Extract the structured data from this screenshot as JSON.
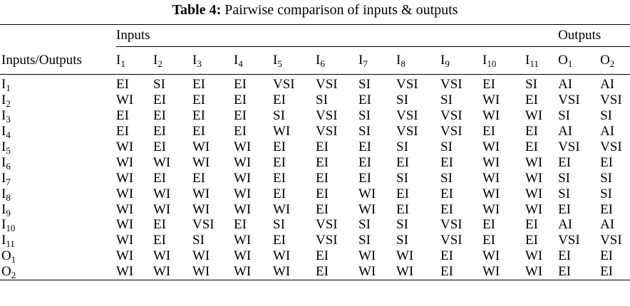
{
  "caption": {
    "label": "Table 4:",
    "text": "Pairwise comparison of inputs & outputs"
  },
  "table": {
    "corner_label": "Inputs/Outputs",
    "group_inputs": "Inputs",
    "group_outputs": "Outputs",
    "columns": [
      {
        "base": "I",
        "sub": "1"
      },
      {
        "base": "I",
        "sub": "2"
      },
      {
        "base": "I",
        "sub": "3"
      },
      {
        "base": "I",
        "sub": "4"
      },
      {
        "base": "I",
        "sub": "5"
      },
      {
        "base": "I",
        "sub": "6"
      },
      {
        "base": "I",
        "sub": "7"
      },
      {
        "base": "I",
        "sub": "8"
      },
      {
        "base": "I",
        "sub": "9"
      },
      {
        "base": "I",
        "sub": "10"
      },
      {
        "base": "I",
        "sub": "11"
      },
      {
        "base": "O",
        "sub": "1"
      },
      {
        "base": "O",
        "sub": "2"
      }
    ],
    "rows": [
      {
        "label": {
          "base": "I",
          "sub": "1"
        },
        "cells": [
          "EI",
          "SI",
          "EI",
          "EI",
          "VSI",
          "VSI",
          "SI",
          "VSI",
          "VSI",
          "EI",
          "SI",
          "AI",
          "AI"
        ]
      },
      {
        "label": {
          "base": "I",
          "sub": "2"
        },
        "cells": [
          "WI",
          "EI",
          "EI",
          "EI",
          "EI",
          "SI",
          "EI",
          "SI",
          "SI",
          "WI",
          "EI",
          "VSI",
          "VSI"
        ]
      },
      {
        "label": {
          "base": "I",
          "sub": "3"
        },
        "cells": [
          "EI",
          "EI",
          "EI",
          "EI",
          "SI",
          "VSI",
          "SI",
          "VSI",
          "VSI",
          "WI",
          "WI",
          "SI",
          "SI"
        ]
      },
      {
        "label": {
          "base": "I",
          "sub": "4"
        },
        "cells": [
          "EI",
          "EI",
          "EI",
          "EI",
          "WI",
          "VSI",
          "SI",
          "VSI",
          "VSI",
          "EI",
          "EI",
          "AI",
          "AI"
        ]
      },
      {
        "label": {
          "base": "I",
          "sub": "5"
        },
        "cells": [
          "WI",
          "EI",
          "WI",
          "WI",
          "EI",
          "EI",
          "EI",
          "SI",
          "SI",
          "WI",
          "EI",
          "VSI",
          "VSI"
        ]
      },
      {
        "label": {
          "base": "I",
          "sub": "6"
        },
        "cells": [
          "WI",
          "WI",
          "WI",
          "WI",
          "EI",
          "EI",
          "EI",
          "EI",
          "EI",
          "WI",
          "WI",
          "EI",
          "EI"
        ]
      },
      {
        "label": {
          "base": "I",
          "sub": "7"
        },
        "cells": [
          "WI",
          "EI",
          "EI",
          "WI",
          "EI",
          "EI",
          "EI",
          "SI",
          "SI",
          "WI",
          "WI",
          "SI",
          "SI"
        ]
      },
      {
        "label": {
          "base": "I",
          "sub": "8"
        },
        "cells": [
          "WI",
          "WI",
          "WI",
          "WI",
          "EI",
          "EI",
          "WI",
          "EI",
          "EI",
          "WI",
          "WI",
          "SI",
          "SI"
        ]
      },
      {
        "label": {
          "base": "I",
          "sub": "9"
        },
        "cells": [
          "WI",
          "WI",
          "WI",
          "WI",
          "WI",
          "EI",
          "WI",
          "EI",
          "EI",
          "WI",
          "WI",
          "EI",
          "EI"
        ]
      },
      {
        "label": {
          "base": "I",
          "sub": "10"
        },
        "cells": [
          "WI",
          "EI",
          "VSI",
          "EI",
          "SI",
          "VSI",
          "SI",
          "SI",
          "VSI",
          "EI",
          "EI",
          "AI",
          "AI"
        ]
      },
      {
        "label": {
          "base": "I",
          "sub": "11"
        },
        "cells": [
          "WI",
          "EI",
          "SI",
          "WI",
          "EI",
          "VSI",
          "SI",
          "SI",
          "VSI",
          "EI",
          "EI",
          "VSI",
          "VSI"
        ]
      },
      {
        "label": {
          "base": "O",
          "sub": "1"
        },
        "cells": [
          "WI",
          "WI",
          "WI",
          "WI",
          "WI",
          "EI",
          "WI",
          "WI",
          "EI",
          "WI",
          "WI",
          "EI",
          "EI"
        ]
      },
      {
        "label": {
          "base": "O",
          "sub": "2"
        },
        "cells": [
          "WI",
          "WI",
          "WI",
          "WI",
          "WI",
          "EI",
          "WI",
          "WI",
          "EI",
          "WI",
          "WI",
          "EI",
          "EI"
        ]
      }
    ]
  }
}
